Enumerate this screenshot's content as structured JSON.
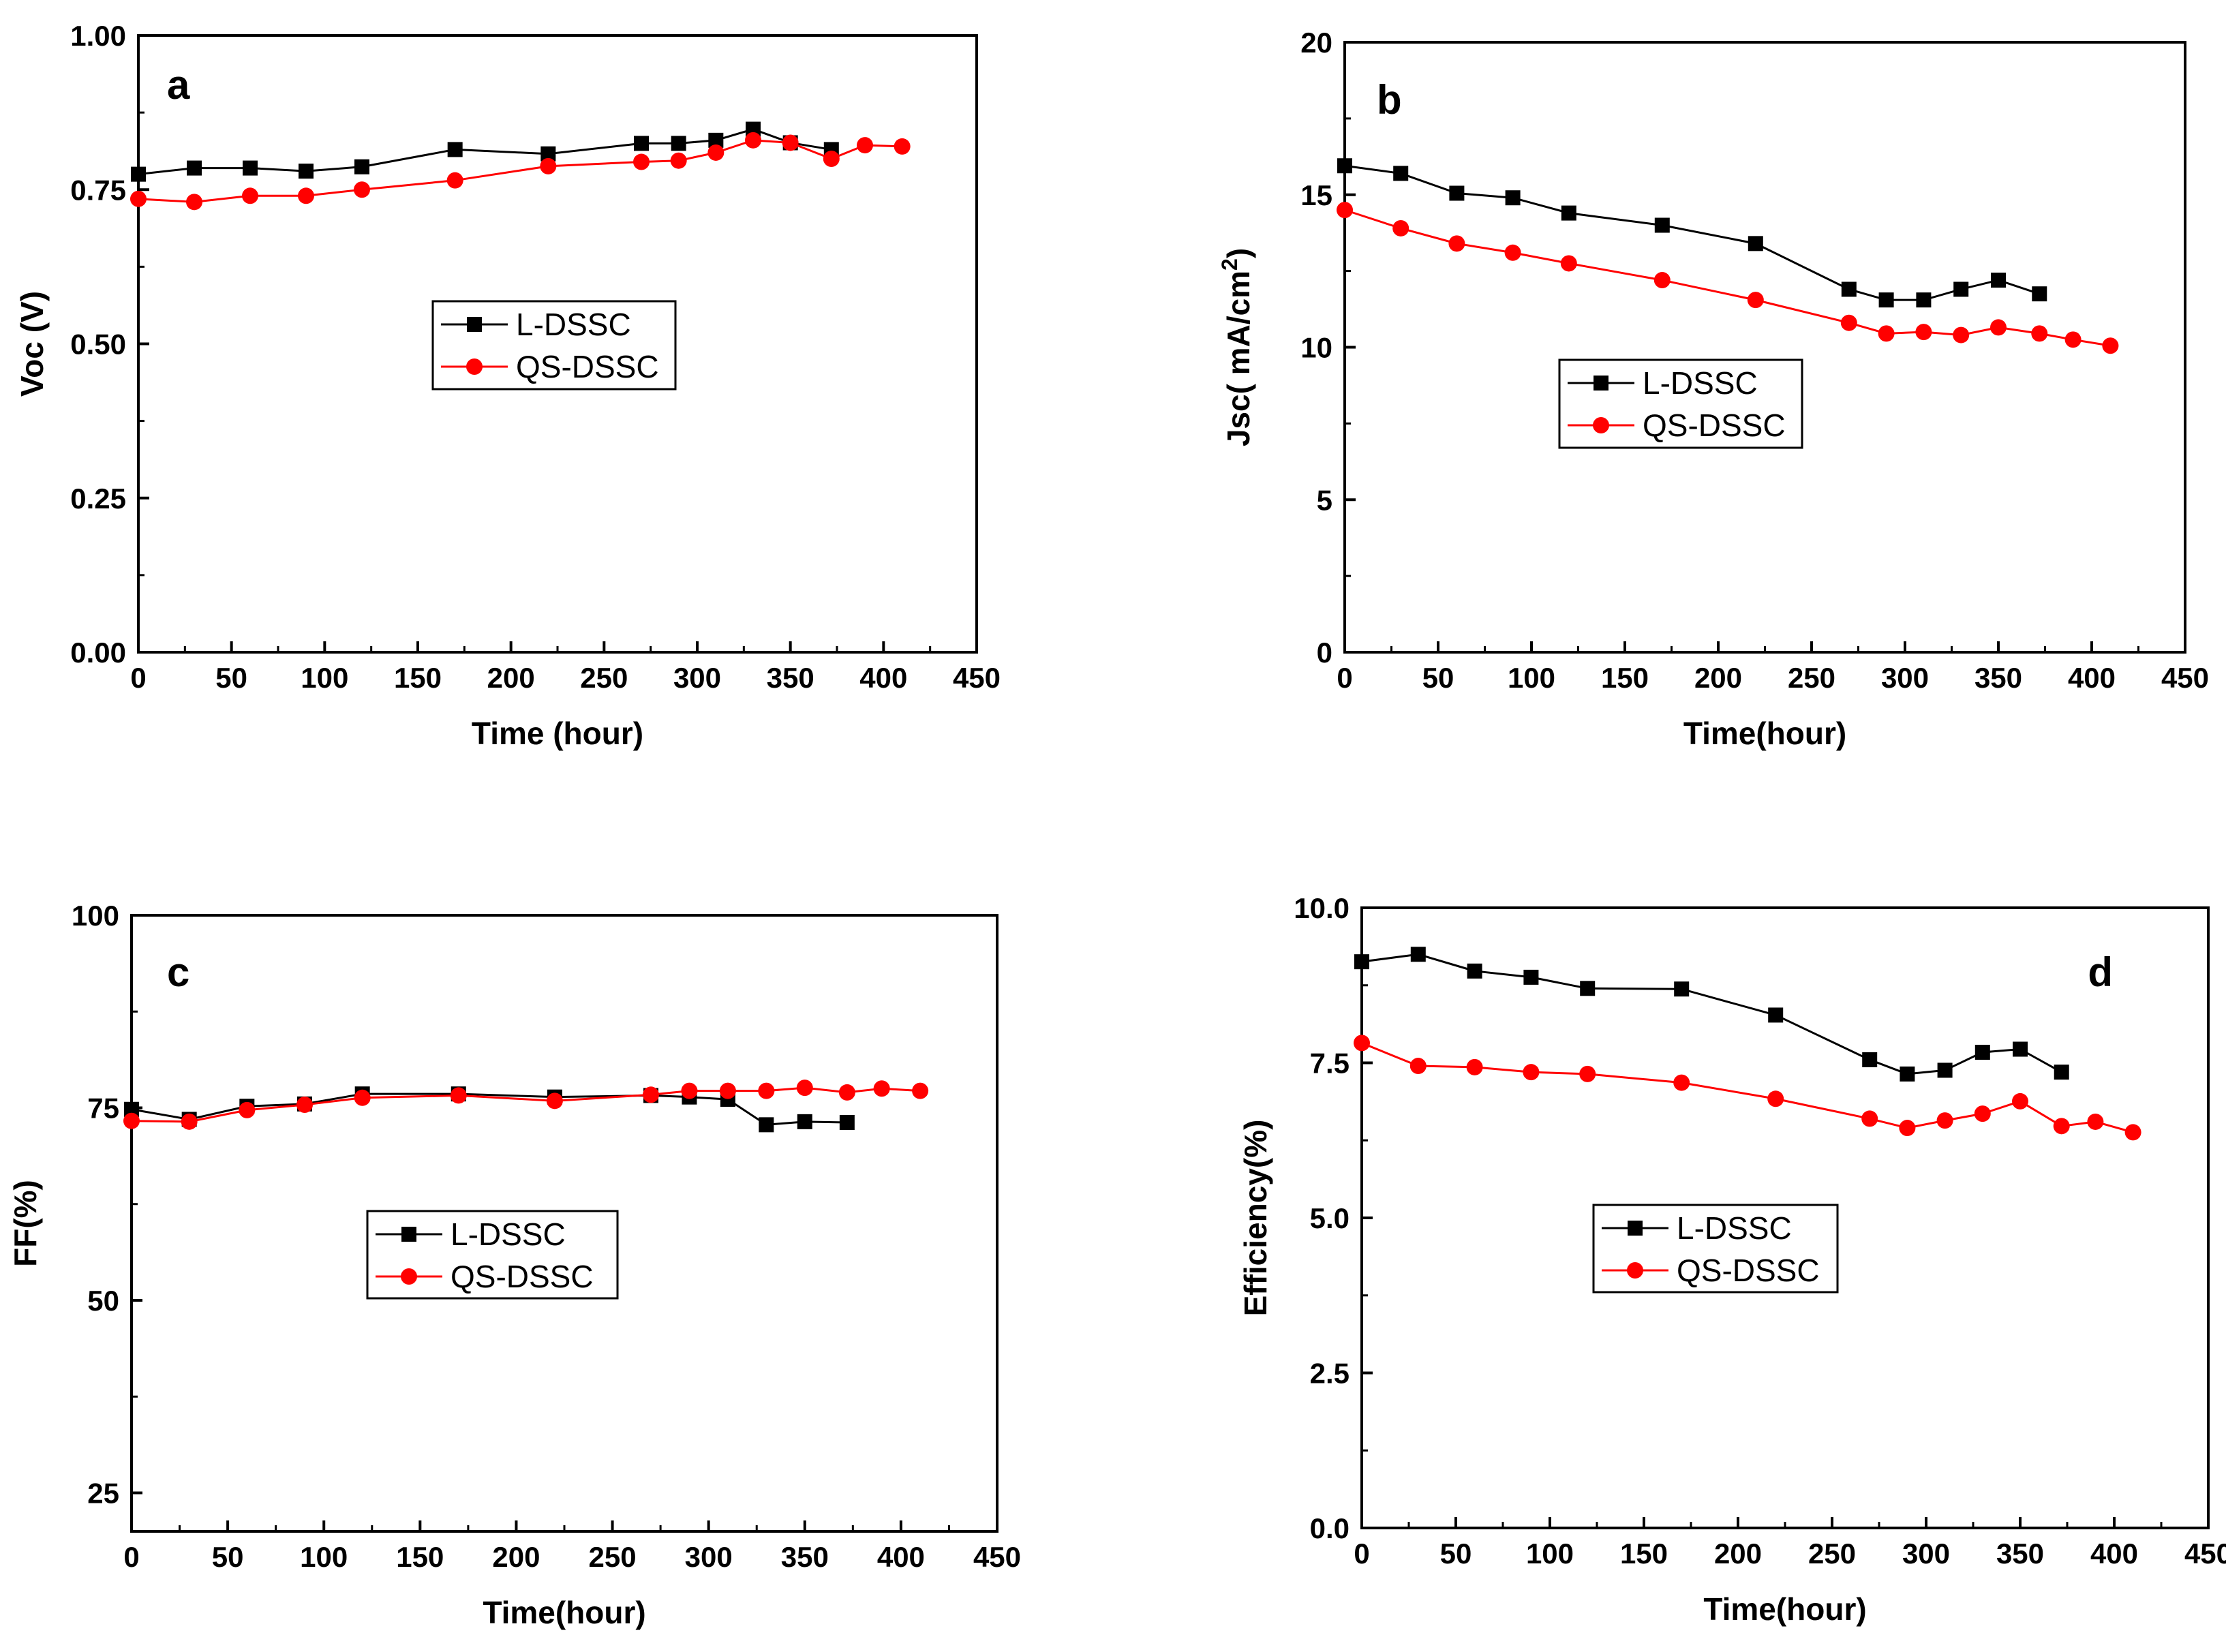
{
  "colors": {
    "l_dssc": "#000000",
    "qs_dssc": "#ff0000",
    "axis": "#000000",
    "background": "#ffffff"
  },
  "chart_data": [
    {
      "type": "line",
      "panel": "a",
      "xlabel": "Time (hour)",
      "ylabel": "Voc (V)",
      "ylabel_sup": "",
      "ylabel_tail": "",
      "xlim": [
        0,
        450
      ],
      "ylim": [
        0,
        1
      ],
      "xticks": [
        0,
        50,
        100,
        150,
        200,
        250,
        300,
        350,
        400,
        450
      ],
      "xtick_labels": [
        "0",
        "50",
        "100",
        "150",
        "200",
        "250",
        "300",
        "350",
        "400",
        "450"
      ],
      "yticks": [
        0,
        0.25,
        0.5,
        0.75,
        1.0
      ],
      "ytick_labels": [
        "0.00",
        "0.25",
        "0.50",
        "0.75",
        "1.00"
      ],
      "letter_position": "top-left",
      "legend_position": "center",
      "series": [
        {
          "name": "L-DSSC",
          "marker": "square",
          "color": "#000000",
          "x": [
            0,
            30,
            60,
            90,
            120,
            170,
            220,
            270,
            290,
            310,
            330,
            350,
            372
          ],
          "y": [
            0.775,
            0.785,
            0.785,
            0.78,
            0.787,
            0.815,
            0.808,
            0.825,
            0.825,
            0.83,
            0.848,
            0.826,
            0.815
          ]
        },
        {
          "name": "QS-DSSC",
          "marker": "circle",
          "color": "#ff0000",
          "x": [
            0,
            30,
            60,
            90,
            120,
            170,
            220,
            270,
            290,
            310,
            330,
            350,
            372,
            390,
            410
          ],
          "y": [
            0.735,
            0.73,
            0.74,
            0.74,
            0.75,
            0.765,
            0.788,
            0.795,
            0.797,
            0.81,
            0.83,
            0.826,
            0.8,
            0.822,
            0.82
          ]
        }
      ]
    },
    {
      "type": "line",
      "panel": "b",
      "xlabel": "Time(hour)",
      "ylabel": "Jsc( mA/cm",
      "ylabel_sup": "2",
      "ylabel_tail": ")",
      "xlim": [
        0,
        450
      ],
      "ylim": [
        0,
        20
      ],
      "xticks": [
        0,
        50,
        100,
        150,
        200,
        250,
        300,
        350,
        400,
        450
      ],
      "xtick_labels": [
        "0",
        "50",
        "100",
        "150",
        "200",
        "250",
        "300",
        "350",
        "400",
        "450"
      ],
      "yticks": [
        0,
        5,
        10,
        15,
        20
      ],
      "ytick_labels": [
        "0",
        "5",
        "10",
        "15",
        "20"
      ],
      "letter_position": "top-left",
      "legend_position": "center-left",
      "series": [
        {
          "name": "L-DSSC",
          "marker": "square",
          "color": "#000000",
          "x": [
            0,
            30,
            60,
            90,
            120,
            170,
            220,
            270,
            290,
            310,
            330,
            350,
            372
          ],
          "y": [
            15.95,
            15.7,
            15.05,
            14.9,
            14.4,
            14.0,
            13.4,
            11.9,
            11.55,
            11.55,
            11.9,
            12.2,
            11.75
          ]
        },
        {
          "name": "QS-DSSC",
          "marker": "circle",
          "color": "#ff0000",
          "x": [
            0,
            30,
            60,
            90,
            120,
            170,
            220,
            270,
            290,
            310,
            330,
            350,
            372,
            390,
            410
          ],
          "y": [
            14.5,
            13.9,
            13.4,
            13.1,
            12.75,
            12.2,
            11.55,
            10.8,
            10.45,
            10.5,
            10.4,
            10.65,
            10.45,
            10.25,
            10.05
          ]
        }
      ]
    },
    {
      "type": "line",
      "panel": "c",
      "xlabel": "Time(hour)",
      "ylabel": "FF(%)",
      "ylabel_sup": "",
      "ylabel_tail": "",
      "xlim": [
        0,
        450
      ],
      "ylim": [
        20,
        100
      ],
      "xticks": [
        0,
        50,
        100,
        150,
        200,
        250,
        300,
        350,
        400,
        450
      ],
      "xtick_labels": [
        "0",
        "50",
        "100",
        "150",
        "200",
        "250",
        "300",
        "350",
        "400",
        "450"
      ],
      "yticks": [
        25,
        50,
        75,
        100
      ],
      "ytick_labels": [
        "25",
        "50",
        "75",
        "100"
      ],
      "letter_position": "top-left",
      "legend_position": "center-left",
      "series": [
        {
          "name": "L-DSSC",
          "marker": "square",
          "color": "#000000",
          "x": [
            0,
            30,
            60,
            90,
            120,
            170,
            220,
            270,
            290,
            310,
            330,
            350,
            372
          ],
          "y": [
            74.8,
            73.5,
            75.2,
            75.5,
            76.8,
            76.8,
            76.4,
            76.6,
            76.4,
            76.1,
            72.8,
            73.2,
            73.1
          ]
        },
        {
          "name": "QS-DSSC",
          "marker": "circle",
          "color": "#ff0000",
          "x": [
            0,
            30,
            60,
            90,
            120,
            170,
            220,
            270,
            290,
            310,
            330,
            350,
            372,
            390,
            410
          ],
          "y": [
            73.3,
            73.2,
            74.7,
            75.4,
            76.3,
            76.6,
            75.9,
            76.7,
            77.2,
            77.2,
            77.2,
            77.6,
            77.0,
            77.5,
            77.2
          ]
        }
      ]
    },
    {
      "type": "line",
      "panel": "d",
      "xlabel": "Time(hour)",
      "ylabel": "Efficiency(%)",
      "ylabel_sup": "",
      "ylabel_tail": "",
      "xlim": [
        0,
        450
      ],
      "ylim": [
        0,
        10
      ],
      "xticks": [
        0,
        50,
        100,
        150,
        200,
        250,
        300,
        350,
        400,
        450
      ],
      "xtick_labels": [
        "0",
        "50",
        "100",
        "150",
        "200",
        "250",
        "300",
        "350",
        "400",
        "450"
      ],
      "yticks": [
        0,
        2.5,
        5,
        7.5,
        10
      ],
      "ytick_labels": [
        "0.0",
        "2.5",
        "5.0",
        "7.5",
        "10.0"
      ],
      "letter_position": "top-right",
      "legend_position": "center",
      "series": [
        {
          "name": "L-DSSC",
          "marker": "square",
          "color": "#000000",
          "x": [
            0,
            30,
            60,
            90,
            120,
            170,
            220,
            270,
            290,
            310,
            330,
            350,
            372
          ],
          "y": [
            9.13,
            9.25,
            8.98,
            8.88,
            8.7,
            8.69,
            8.27,
            7.55,
            7.32,
            7.38,
            7.67,
            7.72,
            7.35
          ]
        },
        {
          "name": "QS-DSSC",
          "marker": "circle",
          "color": "#ff0000",
          "x": [
            0,
            30,
            60,
            90,
            120,
            170,
            220,
            270,
            290,
            310,
            330,
            350,
            372,
            390,
            410
          ],
          "y": [
            7.82,
            7.45,
            7.43,
            7.35,
            7.32,
            7.18,
            6.92,
            6.6,
            6.45,
            6.57,
            6.68,
            6.88,
            6.48,
            6.55,
            6.38
          ]
        }
      ]
    }
  ]
}
